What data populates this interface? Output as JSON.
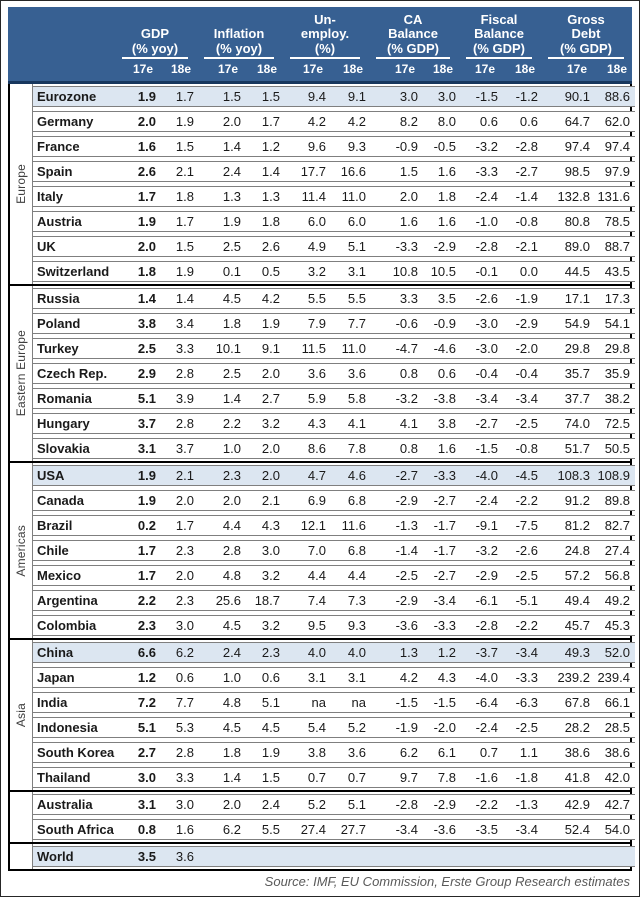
{
  "chart_data": {
    "type": "table",
    "column_groups": [
      {
        "id": "gdp",
        "title_lines": [
          "GDP"
        ],
        "unit": "(% yoy)",
        "sub": [
          "17e",
          "18e"
        ]
      },
      {
        "id": "inflation",
        "title_lines": [
          "Inflation"
        ],
        "unit": "(% yoy)",
        "sub": [
          "17e",
          "18e"
        ]
      },
      {
        "id": "unemployment",
        "title_lines": [
          "Un-",
          "employ."
        ],
        "unit": "(%)",
        "sub": [
          "17e",
          "18e"
        ]
      },
      {
        "id": "ca-balance",
        "title_lines": [
          "CA",
          "Balance"
        ],
        "unit": "(% GDP)",
        "sub": [
          "17e",
          "18e"
        ]
      },
      {
        "id": "fiscal-balance",
        "title_lines": [
          "Fiscal",
          "Balance"
        ],
        "unit": "(% GDP)",
        "sub": [
          "17e",
          "18e"
        ]
      },
      {
        "id": "gross-debt",
        "title_lines": [
          "Gross",
          "Debt"
        ],
        "unit": "(% GDP)",
        "sub": [
          "17e",
          "18e"
        ]
      }
    ],
    "row_groups": [
      {
        "id": "europe",
        "label": "Europe",
        "rows": [
          {
            "name": "Eurozone",
            "highlight": true,
            "values": [
              "1.9",
              "1.7",
              "1.5",
              "1.5",
              "9.4",
              "9.1",
              "3.0",
              "3.0",
              "-1.5",
              "-1.2",
              "90.1",
              "88.6"
            ]
          },
          {
            "name": "Germany",
            "highlight": false,
            "values": [
              "2.0",
              "1.9",
              "2.0",
              "1.7",
              "4.2",
              "4.2",
              "8.2",
              "8.0",
              "0.6",
              "0.6",
              "64.7",
              "62.0"
            ]
          },
          {
            "name": "France",
            "highlight": false,
            "values": [
              "1.6",
              "1.5",
              "1.4",
              "1.2",
              "9.6",
              "9.3",
              "-0.9",
              "-0.5",
              "-3.2",
              "-2.8",
              "97.4",
              "97.4"
            ]
          },
          {
            "name": "Spain",
            "highlight": false,
            "values": [
              "2.6",
              "2.1",
              "2.4",
              "1.4",
              "17.7",
              "16.6",
              "1.5",
              "1.6",
              "-3.3",
              "-2.7",
              "98.5",
              "97.9"
            ]
          },
          {
            "name": "Italy",
            "highlight": false,
            "values": [
              "1.7",
              "1.8",
              "1.3",
              "1.3",
              "11.4",
              "11.0",
              "2.0",
              "1.8",
              "-2.4",
              "-1.4",
              "132.8",
              "131.6"
            ]
          },
          {
            "name": "Austria",
            "highlight": false,
            "values": [
              "1.9",
              "1.7",
              "1.9",
              "1.8",
              "6.0",
              "6.0",
              "1.6",
              "1.6",
              "-1.0",
              "-0.8",
              "80.8",
              "78.5"
            ]
          },
          {
            "name": "UK",
            "highlight": false,
            "values": [
              "2.0",
              "1.5",
              "2.5",
              "2.6",
              "4.9",
              "5.1",
              "-3.3",
              "-2.9",
              "-2.8",
              "-2.1",
              "89.0",
              "88.7"
            ]
          },
          {
            "name": "Switzerland",
            "highlight": false,
            "values": [
              "1.8",
              "1.9",
              "0.1",
              "0.5",
              "3.2",
              "3.1",
              "10.8",
              "10.5",
              "-0.1",
              "0.0",
              "44.5",
              "43.5"
            ]
          }
        ]
      },
      {
        "id": "eastern-europe",
        "label": "Eastern Europe",
        "rows": [
          {
            "name": "Russia",
            "highlight": false,
            "values": [
              "1.4",
              "1.4",
              "4.5",
              "4.2",
              "5.5",
              "5.5",
              "3.3",
              "3.5",
              "-2.6",
              "-1.9",
              "17.1",
              "17.3"
            ]
          },
          {
            "name": "Poland",
            "highlight": false,
            "values": [
              "3.8",
              "3.4",
              "1.8",
              "1.9",
              "7.9",
              "7.7",
              "-0.6",
              "-0.9",
              "-3.0",
              "-2.9",
              "54.9",
              "54.1"
            ]
          },
          {
            "name": "Turkey",
            "highlight": false,
            "values": [
              "2.5",
              "3.3",
              "10.1",
              "9.1",
              "11.5",
              "11.0",
              "-4.7",
              "-4.6",
              "-3.0",
              "-2.0",
              "29.8",
              "29.8"
            ]
          },
          {
            "name": "Czech Rep.",
            "highlight": false,
            "values": [
              "2.9",
              "2.8",
              "2.5",
              "2.0",
              "3.6",
              "3.6",
              "0.8",
              "0.6",
              "-0.4",
              "-0.4",
              "35.7",
              "35.9"
            ]
          },
          {
            "name": "Romania",
            "highlight": false,
            "values": [
              "5.1",
              "3.9",
              "1.4",
              "2.7",
              "5.9",
              "5.8",
              "-3.2",
              "-3.8",
              "-3.4",
              "-3.4",
              "37.7",
              "38.2"
            ]
          },
          {
            "name": "Hungary",
            "highlight": false,
            "values": [
              "3.7",
              "2.8",
              "2.2",
              "3.2",
              "4.3",
              "4.1",
              "4.1",
              "3.8",
              "-2.7",
              "-2.5",
              "74.0",
              "72.5"
            ]
          },
          {
            "name": "Slovakia",
            "highlight": false,
            "values": [
              "3.1",
              "3.7",
              "1.0",
              "2.0",
              "8.6",
              "7.8",
              "0.8",
              "1.6",
              "-1.5",
              "-0.8",
              "51.7",
              "50.5"
            ]
          }
        ]
      },
      {
        "id": "americas",
        "label": "Americas",
        "rows": [
          {
            "name": "USA",
            "highlight": true,
            "values": [
              "1.9",
              "2.1",
              "2.3",
              "2.0",
              "4.7",
              "4.6",
              "-2.7",
              "-3.3",
              "-4.0",
              "-4.5",
              "108.3",
              "108.9"
            ]
          },
          {
            "name": "Canada",
            "highlight": false,
            "values": [
              "1.9",
              "2.0",
              "2.0",
              "2.1",
              "6.9",
              "6.8",
              "-2.9",
              "-2.7",
              "-2.4",
              "-2.2",
              "91.2",
              "89.8"
            ]
          },
          {
            "name": "Brazil",
            "highlight": false,
            "values": [
              "0.2",
              "1.7",
              "4.4",
              "4.3",
              "12.1",
              "11.6",
              "-1.3",
              "-1.7",
              "-9.1",
              "-7.5",
              "81.2",
              "82.7"
            ]
          },
          {
            "name": "Chile",
            "highlight": false,
            "values": [
              "1.7",
              "2.3",
              "2.8",
              "3.0",
              "7.0",
              "6.8",
              "-1.4",
              "-1.7",
              "-3.2",
              "-2.6",
              "24.8",
              "27.4"
            ]
          },
          {
            "name": "Mexico",
            "highlight": false,
            "values": [
              "1.7",
              "2.0",
              "4.8",
              "3.2",
              "4.4",
              "4.4",
              "-2.5",
              "-2.7",
              "-2.9",
              "-2.5",
              "57.2",
              "56.8"
            ]
          },
          {
            "name": "Argentina",
            "highlight": false,
            "values": [
              "2.2",
              "2.3",
              "25.6",
              "18.7",
              "7.4",
              "7.3",
              "-2.9",
              "-3.4",
              "-6.1",
              "-5.1",
              "49.4",
              "49.2"
            ]
          },
          {
            "name": "Colombia",
            "highlight": false,
            "values": [
              "2.3",
              "3.0",
              "4.5",
              "3.2",
              "9.5",
              "9.3",
              "-3.6",
              "-3.3",
              "-2.8",
              "-2.2",
              "45.7",
              "45.3"
            ]
          }
        ]
      },
      {
        "id": "asia",
        "label": "Asia",
        "rows": [
          {
            "name": "China",
            "highlight": true,
            "values": [
              "6.6",
              "6.2",
              "2.4",
              "2.3",
              "4.0",
              "4.0",
              "1.3",
              "1.2",
              "-3.7",
              "-3.4",
              "49.3",
              "52.0"
            ]
          },
          {
            "name": "Japan",
            "highlight": false,
            "values": [
              "1.2",
              "0.6",
              "1.0",
              "0.6",
              "3.1",
              "3.1",
              "4.2",
              "4.3",
              "-4.0",
              "-3.3",
              "239.2",
              "239.4"
            ]
          },
          {
            "name": "India",
            "highlight": false,
            "values": [
              "7.2",
              "7.7",
              "4.8",
              "5.1",
              "na",
              "na",
              "-1.5",
              "-1.5",
              "-6.4",
              "-6.3",
              "67.8",
              "66.1"
            ]
          },
          {
            "name": "Indonesia",
            "highlight": false,
            "values": [
              "5.1",
              "5.3",
              "4.5",
              "4.5",
              "5.4",
              "5.2",
              "-1.9",
              "-2.0",
              "-2.4",
              "-2.5",
              "28.2",
              "28.5"
            ]
          },
          {
            "name": "South Korea",
            "highlight": false,
            "values": [
              "2.7",
              "2.8",
              "1.8",
              "1.9",
              "3.8",
              "3.6",
              "6.2",
              "6.1",
              "0.7",
              "1.1",
              "38.6",
              "38.6"
            ]
          },
          {
            "name": "Thailand",
            "highlight": false,
            "values": [
              "3.0",
              "3.3",
              "1.4",
              "1.5",
              "0.7",
              "0.7",
              "9.7",
              "7.8",
              "-1.6",
              "-1.8",
              "41.8",
              "42.0"
            ]
          }
        ]
      },
      {
        "id": "other",
        "label": "",
        "rows": [
          {
            "name": "Australia",
            "highlight": false,
            "values": [
              "3.1",
              "3.0",
              "2.0",
              "2.4",
              "5.2",
              "5.1",
              "-2.8",
              "-2.9",
              "-2.2",
              "-1.3",
              "42.9",
              "42.7"
            ]
          },
          {
            "name": "South Africa",
            "highlight": false,
            "values": [
              "0.8",
              "1.6",
              "6.2",
              "5.5",
              "27.4",
              "27.7",
              "-3.4",
              "-3.6",
              "-3.5",
              "-3.4",
              "52.4",
              "54.0"
            ]
          }
        ]
      },
      {
        "id": "world",
        "label": "",
        "rows": [
          {
            "name": "World",
            "highlight": true,
            "values": [
              "3.5",
              "3.6",
              "",
              "",
              "",
              "",
              "",
              "",
              "",
              "",
              "",
              ""
            ]
          }
        ]
      }
    ]
  },
  "footer": {
    "source_text": "Source: IMF, EU Commission, Erste Group Research estimates"
  },
  "colors": {
    "header_bg": "#376092",
    "header_text": "#ffffff",
    "highlight_row_bg": "#dce6f1",
    "row_border": "#7f7f7f",
    "group_border": "#000000",
    "source_text": "#595959"
  }
}
